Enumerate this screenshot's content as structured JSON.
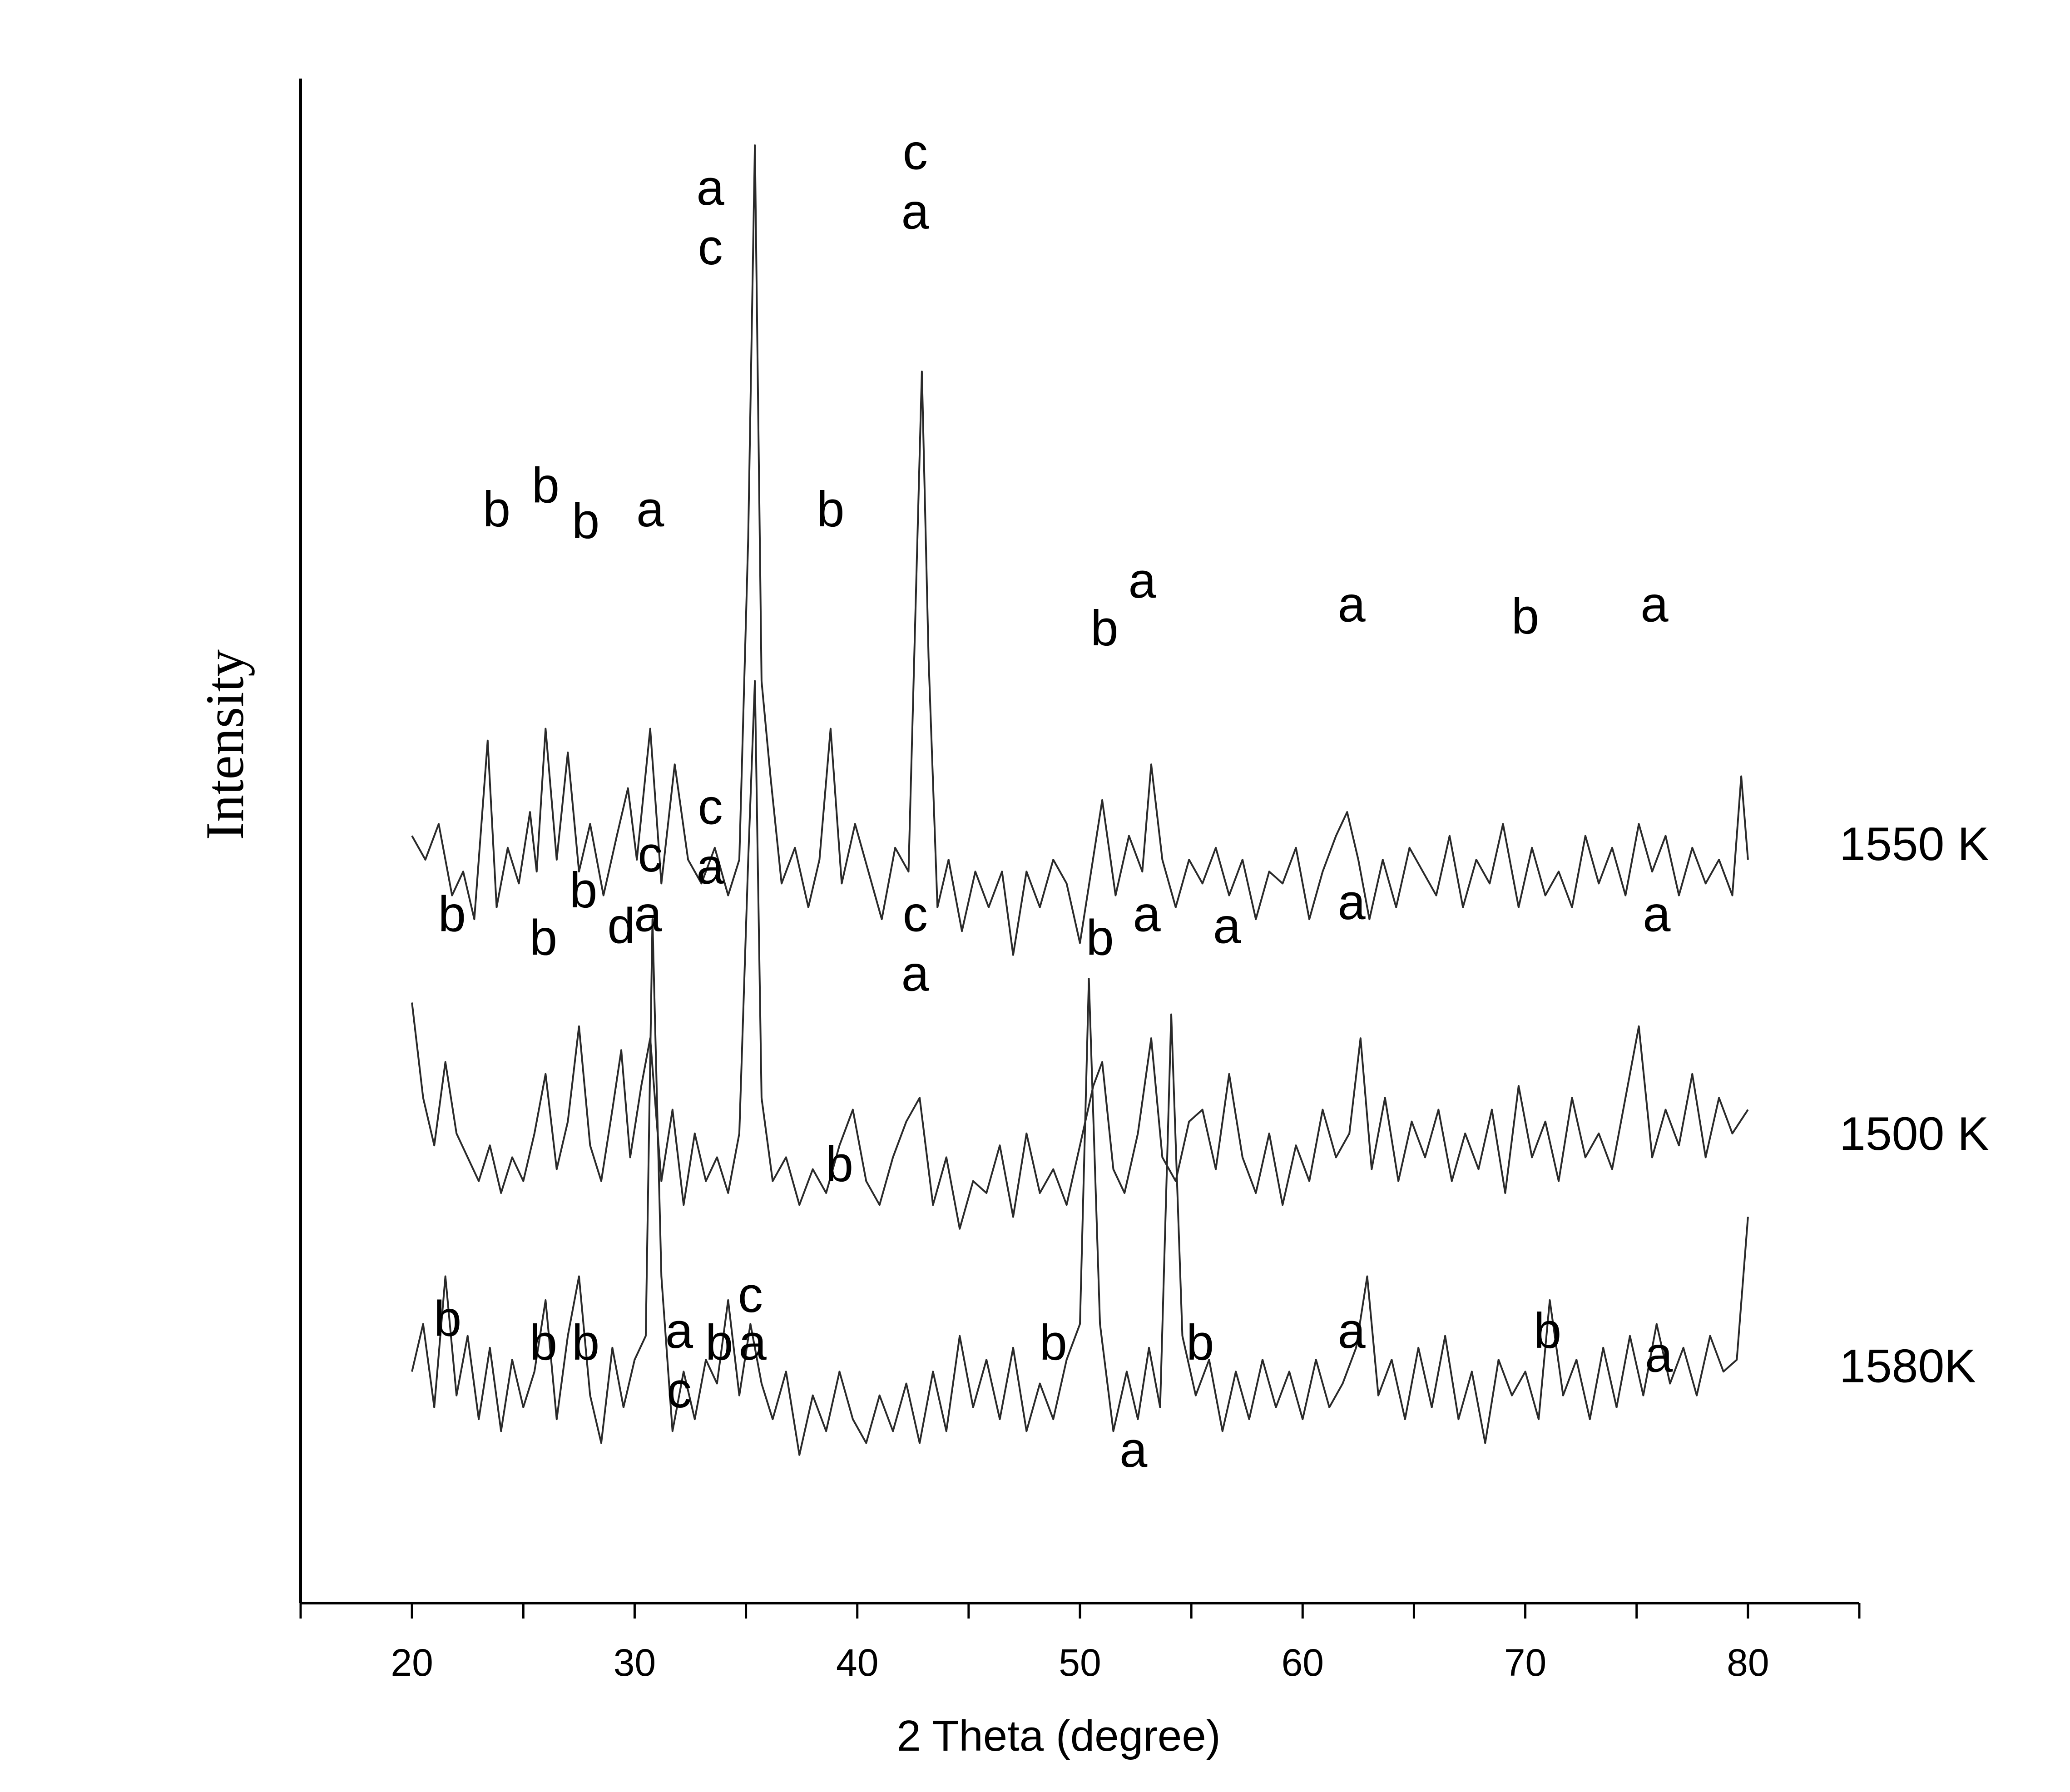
{
  "chart_data": {
    "type": "line",
    "title": "",
    "xlabel": "2 Theta (degree)",
    "ylabel": "Intensity",
    "xlim": [
      15,
      85
    ],
    "x_ticks": [
      20,
      30,
      40,
      50,
      60,
      70,
      80
    ],
    "x_tick_labels": [
      "20",
      "30",
      "40",
      "50",
      "60",
      "70",
      "80"
    ],
    "y_ticks_shown": false,
    "grid": false,
    "series": [
      {
        "name": "1550 K",
        "x": [
          20,
          20.6,
          21.2,
          21.8,
          22.3,
          22.8,
          23.4,
          23.8,
          24.3,
          24.8,
          25.3,
          25.6,
          26.0,
          26.5,
          27.0,
          27.5,
          28.0,
          28.6,
          29.2,
          29.7,
          30.1,
          30.7,
          31.2,
          31.8,
          32.4,
          33.0,
          33.6,
          34.2,
          34.7,
          35.1,
          35.4,
          35.7,
          36.1,
          36.6,
          37.2,
          37.8,
          38.3,
          38.8,
          39.3,
          39.9,
          40.5,
          41.1,
          41.7,
          42.3,
          42.9,
          43.2,
          43.6,
          44.1,
          44.7,
          45.3,
          45.9,
          46.5,
          47.0,
          47.6,
          48.2,
          48.8,
          49.4,
          50.0,
          50.5,
          51.0,
          51.6,
          52.2,
          52.8,
          53.2,
          53.7,
          54.3,
          54.9,
          55.5,
          56.1,
          56.7,
          57.3,
          57.9,
          58.5,
          59.1,
          59.7,
          60.3,
          60.9,
          61.5,
          62.0,
          62.5,
          63.0,
          63.6,
          64.2,
          64.8,
          65.4,
          66.0,
          66.6,
          67.2,
          67.8,
          68.4,
          69.0,
          69.7,
          70.3,
          70.9,
          71.5,
          72.1,
          72.7,
          73.3,
          73.9,
          74.5,
          75.1,
          75.7,
          76.3,
          76.9,
          77.5,
          78.1,
          78.7,
          79.3,
          79.7,
          80.0
        ],
        "y": [
          0.47,
          0.45,
          0.48,
          0.42,
          0.44,
          0.4,
          0.55,
          0.41,
          0.46,
          0.43,
          0.49,
          0.44,
          0.56,
          0.45,
          0.54,
          0.44,
          0.48,
          0.42,
          0.47,
          0.51,
          0.45,
          0.56,
          0.43,
          0.53,
          0.45,
          0.43,
          0.46,
          0.42,
          0.45,
          0.72,
          1.05,
          0.6,
          0.52,
          0.43,
          0.46,
          0.41,
          0.45,
          0.56,
          0.43,
          0.48,
          0.44,
          0.4,
          0.46,
          0.44,
          0.86,
          0.62,
          0.41,
          0.45,
          0.39,
          0.44,
          0.41,
          0.44,
          0.37,
          0.44,
          0.41,
          0.45,
          0.43,
          0.38,
          0.44,
          0.5,
          0.42,
          0.47,
          0.44,
          0.53,
          0.45,
          0.41,
          0.45,
          0.43,
          0.46,
          0.42,
          0.45,
          0.4,
          0.44,
          0.43,
          0.46,
          0.4,
          0.44,
          0.47,
          0.49,
          0.45,
          0.4,
          0.45,
          0.41,
          0.46,
          0.44,
          0.42,
          0.47,
          0.41,
          0.45,
          0.43,
          0.48,
          0.41,
          0.46,
          0.42,
          0.44,
          0.41,
          0.47,
          0.43,
          0.46,
          0.42,
          0.48,
          0.44,
          0.47,
          0.42,
          0.46,
          0.43,
          0.45,
          0.42,
          0.52,
          0.45
        ]
      },
      {
        "name": "1500 K",
        "x": [
          20,
          20.5,
          21.0,
          21.5,
          22.0,
          22.5,
          23.0,
          23.5,
          24.0,
          24.5,
          25.0,
          25.5,
          26.0,
          26.5,
          27.0,
          27.5,
          28.0,
          28.5,
          29.0,
          29.4,
          29.8,
          30.3,
          30.7,
          31.2,
          31.7,
          32.2,
          32.7,
          33.2,
          33.7,
          34.2,
          34.7,
          35.1,
          35.4,
          35.7,
          36.2,
          36.8,
          37.4,
          38.0,
          38.6,
          39.2,
          39.8,
          40.4,
          41.0,
          41.6,
          42.2,
          42.8,
          43.4,
          44.0,
          44.6,
          45.2,
          45.8,
          46.4,
          47.0,
          47.6,
          48.2,
          48.8,
          49.4,
          50.0,
          50.6,
          51.0,
          51.5,
          52.0,
          52.6,
          53.2,
          53.7,
          54.3,
          54.9,
          55.5,
          56.1,
          56.7,
          57.3,
          57.9,
          58.5,
          59.1,
          59.7,
          60.3,
          60.9,
          61.5,
          62.1,
          62.6,
          63.1,
          63.7,
          64.3,
          64.9,
          65.5,
          66.1,
          66.7,
          67.3,
          67.9,
          68.5,
          69.1,
          69.7,
          70.3,
          70.9,
          71.5,
          72.1,
          72.7,
          73.3,
          73.9,
          74.5,
          75.1,
          75.7,
          76.3,
          76.9,
          77.5,
          78.1,
          78.7,
          79.3,
          80.0
        ],
        "y": [
          0.33,
          0.25,
          0.21,
          0.28,
          0.22,
          0.2,
          0.18,
          0.21,
          0.17,
          0.2,
          0.18,
          0.22,
          0.27,
          0.19,
          0.23,
          0.31,
          0.21,
          0.18,
          0.24,
          0.29,
          0.2,
          0.26,
          0.3,
          0.18,
          0.24,
          0.16,
          0.22,
          0.18,
          0.2,
          0.17,
          0.22,
          0.45,
          0.6,
          0.25,
          0.18,
          0.2,
          0.16,
          0.19,
          0.17,
          0.21,
          0.24,
          0.18,
          0.16,
          0.2,
          0.23,
          0.25,
          0.16,
          0.2,
          0.14,
          0.18,
          0.17,
          0.21,
          0.15,
          0.22,
          0.17,
          0.19,
          0.16,
          0.21,
          0.26,
          0.28,
          0.19,
          0.17,
          0.22,
          0.3,
          0.2,
          0.18,
          0.23,
          0.24,
          0.19,
          0.27,
          0.2,
          0.17,
          0.22,
          0.16,
          0.21,
          0.18,
          0.24,
          0.2,
          0.22,
          0.3,
          0.19,
          0.25,
          0.18,
          0.23,
          0.2,
          0.24,
          0.18,
          0.22,
          0.19,
          0.24,
          0.17,
          0.26,
          0.2,
          0.23,
          0.18,
          0.25,
          0.2,
          0.22,
          0.19,
          0.25,
          0.31,
          0.2,
          0.24,
          0.21,
          0.27,
          0.2,
          0.25,
          0.22,
          0.24
        ]
      },
      {
        "name": "1580K",
        "x": [
          20,
          20.5,
          21.0,
          21.5,
          22.0,
          22.5,
          23.0,
          23.5,
          24.0,
          24.5,
          25.0,
          25.5,
          26.0,
          26.5,
          27.0,
          27.5,
          28.0,
          28.5,
          29.0,
          29.5,
          30.0,
          30.5,
          30.8,
          31.2,
          31.7,
          32.2,
          32.7,
          33.2,
          33.7,
          34.2,
          34.7,
          35.2,
          35.7,
          36.2,
          36.8,
          37.4,
          38.0,
          38.6,
          39.2,
          39.8,
          40.4,
          41.0,
          41.6,
          42.2,
          42.8,
          43.4,
          44.0,
          44.6,
          45.2,
          45.8,
          46.4,
          47.0,
          47.6,
          48.2,
          48.8,
          49.4,
          50.0,
          50.4,
          50.9,
          51.5,
          52.1,
          52.6,
          53.1,
          53.6,
          54.1,
          54.6,
          55.2,
          55.8,
          56.4,
          57.0,
          57.6,
          58.2,
          58.8,
          59.4,
          60.0,
          60.6,
          61.2,
          61.8,
          62.4,
          62.9,
          63.4,
          64.0,
          64.6,
          65.2,
          65.8,
          66.4,
          67.0,
          67.6,
          68.2,
          68.8,
          69.4,
          70.0,
          70.6,
          71.1,
          71.7,
          72.3,
          72.9,
          73.5,
          74.1,
          74.7,
          75.3,
          75.9,
          76.5,
          77.1,
          77.7,
          78.3,
          78.9,
          79.5,
          80.0
        ],
        "y": [
          0.02,
          0.06,
          -0.01,
          0.1,
          0.0,
          0.05,
          -0.02,
          0.04,
          -0.03,
          0.03,
          -0.01,
          0.02,
          0.08,
          -0.02,
          0.05,
          0.1,
          0.0,
          -0.04,
          0.04,
          -0.01,
          0.03,
          0.05,
          0.4,
          0.1,
          -0.03,
          0.02,
          -0.02,
          0.03,
          0.01,
          0.08,
          0.0,
          0.06,
          0.01,
          -0.02,
          0.02,
          -0.05,
          0.0,
          -0.03,
          0.02,
          -0.02,
          -0.04,
          0.0,
          -0.03,
          0.01,
          -0.04,
          0.02,
          -0.03,
          0.05,
          -0.01,
          0.03,
          -0.02,
          0.04,
          -0.03,
          0.01,
          -0.02,
          0.03,
          0.06,
          0.35,
          0.06,
          -0.03,
          0.02,
          -0.02,
          0.04,
          -0.01,
          0.32,
          0.05,
          0.0,
          0.03,
          -0.03,
          0.02,
          -0.02,
          0.03,
          -0.01,
          0.02,
          -0.02,
          0.03,
          -0.01,
          0.01,
          0.04,
          0.1,
          0.0,
          0.03,
          -0.02,
          0.04,
          -0.01,
          0.05,
          -0.02,
          0.02,
          -0.04,
          0.03,
          0.0,
          0.02,
          -0.02,
          0.08,
          0.0,
          0.03,
          -0.02,
          0.04,
          -0.01,
          0.05,
          0.0,
          0.06,
          0.01,
          0.04,
          0.0,
          0.05,
          0.02,
          0.03,
          0.15
        ]
      }
    ],
    "series_labels": [
      {
        "text": "1550 K",
        "series": 0
      },
      {
        "text": "1500 K",
        "series": 1
      },
      {
        "text": "1580K",
        "series": 2
      }
    ],
    "annotations": [
      {
        "text": "b",
        "x": 23.8,
        "y": 0.73
      },
      {
        "text": "b",
        "x": 26.0,
        "y": 0.75
      },
      {
        "text": "b",
        "x": 27.8,
        "y": 0.72
      },
      {
        "text": "a",
        "x": 30.7,
        "y": 0.73
      },
      {
        "text": "a",
        "x": 33.4,
        "y": 1.0
      },
      {
        "text": "c",
        "x": 33.4,
        "y": 0.95
      },
      {
        "text": "b",
        "x": 38.8,
        "y": 0.73
      },
      {
        "text": "c",
        "x": 42.6,
        "y": 1.03
      },
      {
        "text": "a",
        "x": 42.6,
        "y": 0.98
      },
      {
        "text": "b",
        "x": 51.1,
        "y": 0.63
      },
      {
        "text": "a",
        "x": 52.8,
        "y": 0.67
      },
      {
        "text": "a",
        "x": 62.2,
        "y": 0.65
      },
      {
        "text": "b",
        "x": 70.0,
        "y": 0.64
      },
      {
        "text": "a",
        "x": 75.8,
        "y": 0.65
      },
      {
        "text": "b",
        "x": 21.8,
        "y": 0.39
      },
      {
        "text": "b",
        "x": 25.9,
        "y": 0.37
      },
      {
        "text": "b",
        "x": 27.7,
        "y": 0.41
      },
      {
        "text": "d",
        "x": 29.4,
        "y": 0.38
      },
      {
        "text": "a",
        "x": 30.6,
        "y": 0.39
      },
      {
        "text": "c",
        "x": 30.7,
        "y": 0.44
      },
      {
        "text": "c",
        "x": 33.4,
        "y": 0.48
      },
      {
        "text": "a",
        "x": 33.4,
        "y": 0.43
      },
      {
        "text": "b",
        "x": 39.2,
        "y": 0.18
      },
      {
        "text": "c",
        "x": 42.6,
        "y": 0.39
      },
      {
        "text": "a",
        "x": 42.6,
        "y": 0.34
      },
      {
        "text": "b",
        "x": 50.9,
        "y": 0.37
      },
      {
        "text": "a",
        "x": 53.0,
        "y": 0.39
      },
      {
        "text": "a",
        "x": 56.6,
        "y": 0.38
      },
      {
        "text": "a",
        "x": 62.2,
        "y": 0.4
      },
      {
        "text": "a",
        "x": 75.9,
        "y": 0.39
      },
      {
        "text": "b",
        "x": 21.6,
        "y": 0.05
      },
      {
        "text": "b",
        "x": 25.9,
        "y": 0.03
      },
      {
        "text": "b",
        "x": 27.8,
        "y": 0.03
      },
      {
        "text": "a",
        "x": 32.0,
        "y": 0.04
      },
      {
        "text": "c",
        "x": 32.0,
        "y": -0.01
      },
      {
        "text": "b",
        "x": 33.8,
        "y": 0.03
      },
      {
        "text": "a",
        "x": 35.3,
        "y": 0.03
      },
      {
        "text": "c",
        "x": 35.2,
        "y": 0.07
      },
      {
        "text": "b",
        "x": 48.8,
        "y": 0.03
      },
      {
        "text": "a",
        "x": 52.4,
        "y": -0.06
      },
      {
        "text": "b",
        "x": 55.4,
        "y": 0.03
      },
      {
        "text": "a",
        "x": 62.2,
        "y": 0.04
      },
      {
        "text": "b",
        "x": 71.0,
        "y": 0.04
      },
      {
        "text": "a",
        "x": 76.0,
        "y": 0.02
      }
    ]
  }
}
